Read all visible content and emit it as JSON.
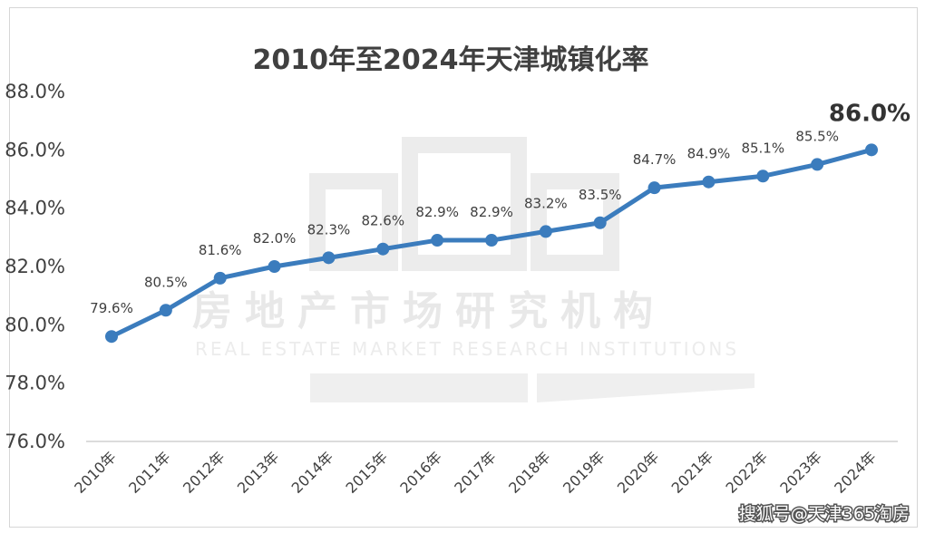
{
  "watermark": {
    "cn": "房地产市场研究机构",
    "en": "REAL ESTATE MARKET RESEARCH INSTITUTIONS"
  },
  "credit": "搜狐号@天津365淘房",
  "colors": {
    "line": "#3b7cbd",
    "axis": "#d0d0d0",
    "text": "#404040"
  },
  "chart_data": {
    "type": "line",
    "title": "2010年至2024年天津城镇化率",
    "xlabel": "",
    "ylabel": "",
    "categories": [
      "2010年",
      "2011年",
      "2012年",
      "2013年",
      "2014年",
      "2015年",
      "2016年",
      "2017年",
      "2018年",
      "2019年",
      "2020年",
      "2021年",
      "2022年",
      "2023年",
      "2024年"
    ],
    "values": [
      79.6,
      80.5,
      81.6,
      82.0,
      82.3,
      82.6,
      82.9,
      82.9,
      83.2,
      83.5,
      84.7,
      84.9,
      85.1,
      85.5,
      86.0
    ],
    "data_labels": [
      "79.6%",
      "80.5%",
      "81.6%",
      "82.0%",
      "82.3%",
      "82.6%",
      "82.9%",
      "82.9%",
      "83.2%",
      "83.5%",
      "84.7%",
      "84.9%",
      "85.1%",
      "85.5%",
      "86.0%"
    ],
    "ylim": [
      76,
      88
    ],
    "yticks": [
      76,
      78,
      80,
      82,
      84,
      86,
      88
    ],
    "ytick_labels": [
      "76.0%",
      "78.0%",
      "80.0%",
      "82.0%",
      "84.0%",
      "86.0%",
      "88.0%"
    ],
    "grid": false,
    "legend": "none"
  }
}
